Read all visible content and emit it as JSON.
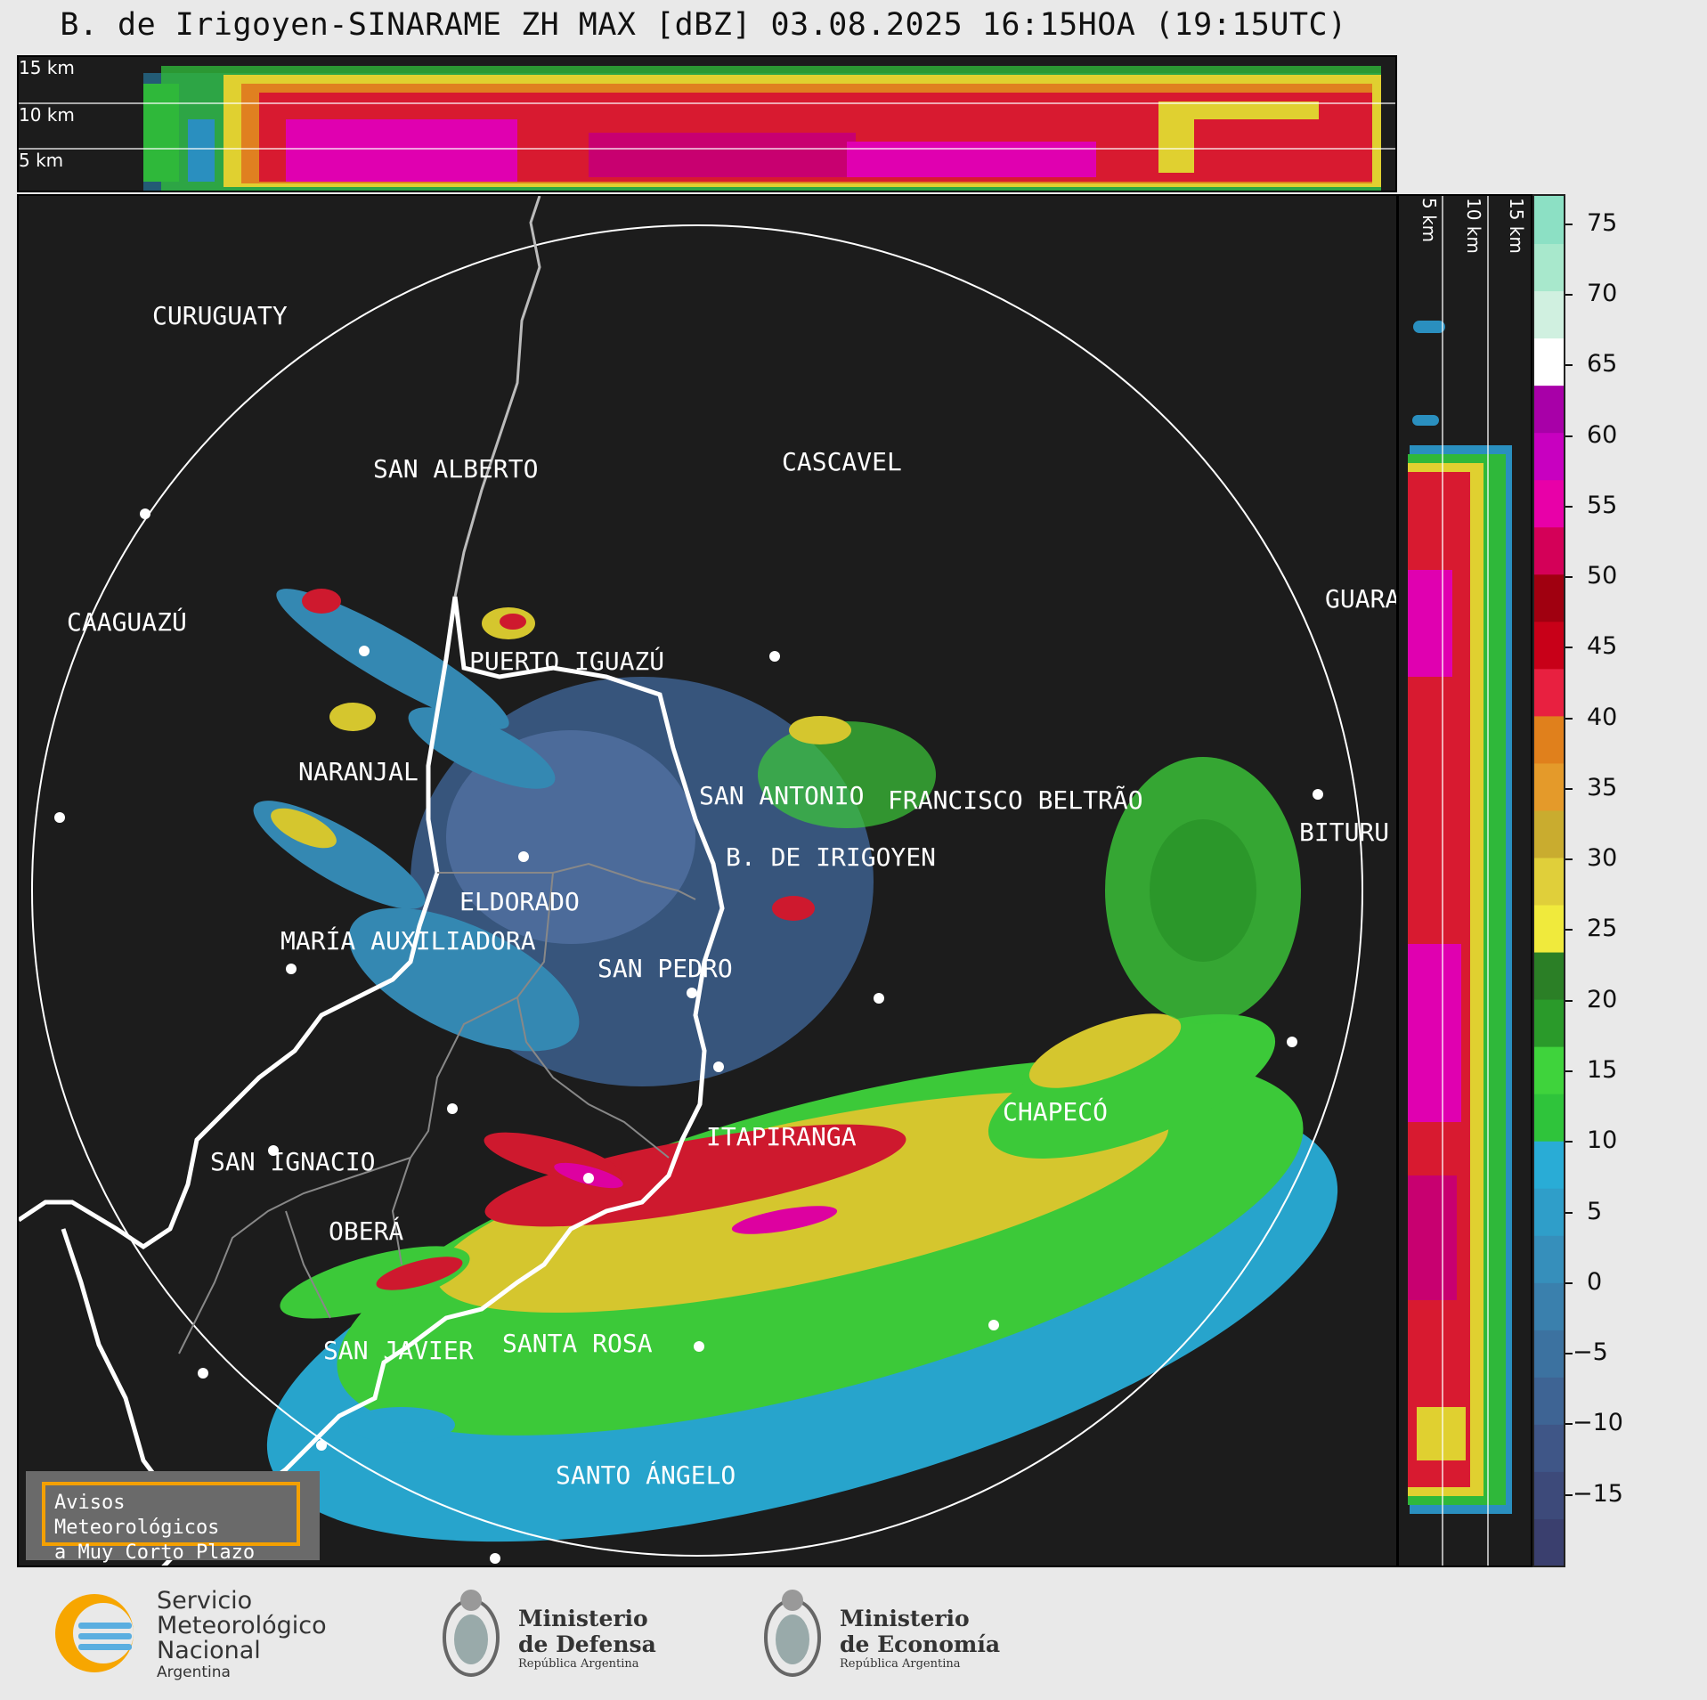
{
  "title": "B. de Irigoyen-SINARAME ZH MAX [dBZ] 03.08.2025 16:15HOA (19:15UTC)",
  "top_panel": {
    "heights": [
      "15 km",
      "10 km",
      "5 km"
    ]
  },
  "right_panel": {
    "heights": [
      "5 km",
      "10 km",
      "15 km"
    ]
  },
  "cities": [
    {
      "name": "CURUGUATY"
    },
    {
      "name": "SAN ALBERTO"
    },
    {
      "name": "CASCAVEL"
    },
    {
      "name": "GUARA"
    },
    {
      "name": "CAAGUAZÚ"
    },
    {
      "name": "PUERTO IGUAZÚ"
    },
    {
      "name": "NARANJAL"
    },
    {
      "name": "SAN ANTONIO"
    },
    {
      "name": "FRANCISCO BELTRÃO"
    },
    {
      "name": "BITURU"
    },
    {
      "name": "B. DE IRIGOYEN"
    },
    {
      "name": "ELDORADO"
    },
    {
      "name": "MARÍA AUXILIADORA"
    },
    {
      "name": "SAN PEDRO"
    },
    {
      "name": "CHAPECÓ"
    },
    {
      "name": "ITAPIRANGA"
    },
    {
      "name": "SAN IGNACIO"
    },
    {
      "name": "OBERÁ"
    },
    {
      "name": "SAN JAVIER"
    },
    {
      "name": "SANTA ROSA"
    },
    {
      "name": "SANTO ÁNGELO"
    }
  ],
  "warning": {
    "line1": "Avisos Meteorológicos",
    "line2": "a Muy Corto Plazo"
  },
  "colorbar": {
    "ticks": [
      "75",
      "70",
      "65",
      "60",
      "55",
      "50",
      "45",
      "40",
      "35",
      "30",
      "25",
      "20",
      "15",
      "10",
      "5",
      "0",
      "−5",
      "−10",
      "−15"
    ],
    "range": [
      -20,
      77
    ],
    "colors": [
      "#3a3f6e",
      "#3d4a7a",
      "#3f5687",
      "#3e6494",
      "#3c72a0",
      "#3a80ad",
      "#368fbb",
      "#2f9ec9",
      "#29acd6",
      "#2fc43b",
      "#3fd33c",
      "#2a9a2a",
      "#2b7f26",
      "#f0ea3c",
      "#e0cf3a",
      "#c9ac2f",
      "#e49a2a",
      "#e0801c",
      "#e82040",
      "#c80018",
      "#a00010",
      "#d40058",
      "#e800a8",
      "#c800c0",
      "#a800a8",
      "#ffffff",
      "#d0f0e0",
      "#a8e8cc",
      "#8ce0c4"
    ]
  },
  "logos": {
    "smn": {
      "line1": "Servicio",
      "line2": "Meteorológico",
      "line3": "Nacional",
      "line4": "Argentina"
    },
    "defensa": {
      "line1": "Ministerio",
      "line2": "de Defensa",
      "line3": "República Argentina"
    },
    "economia": {
      "line1": "Ministerio",
      "line2": "de Economía",
      "line3": "República Argentina"
    }
  }
}
